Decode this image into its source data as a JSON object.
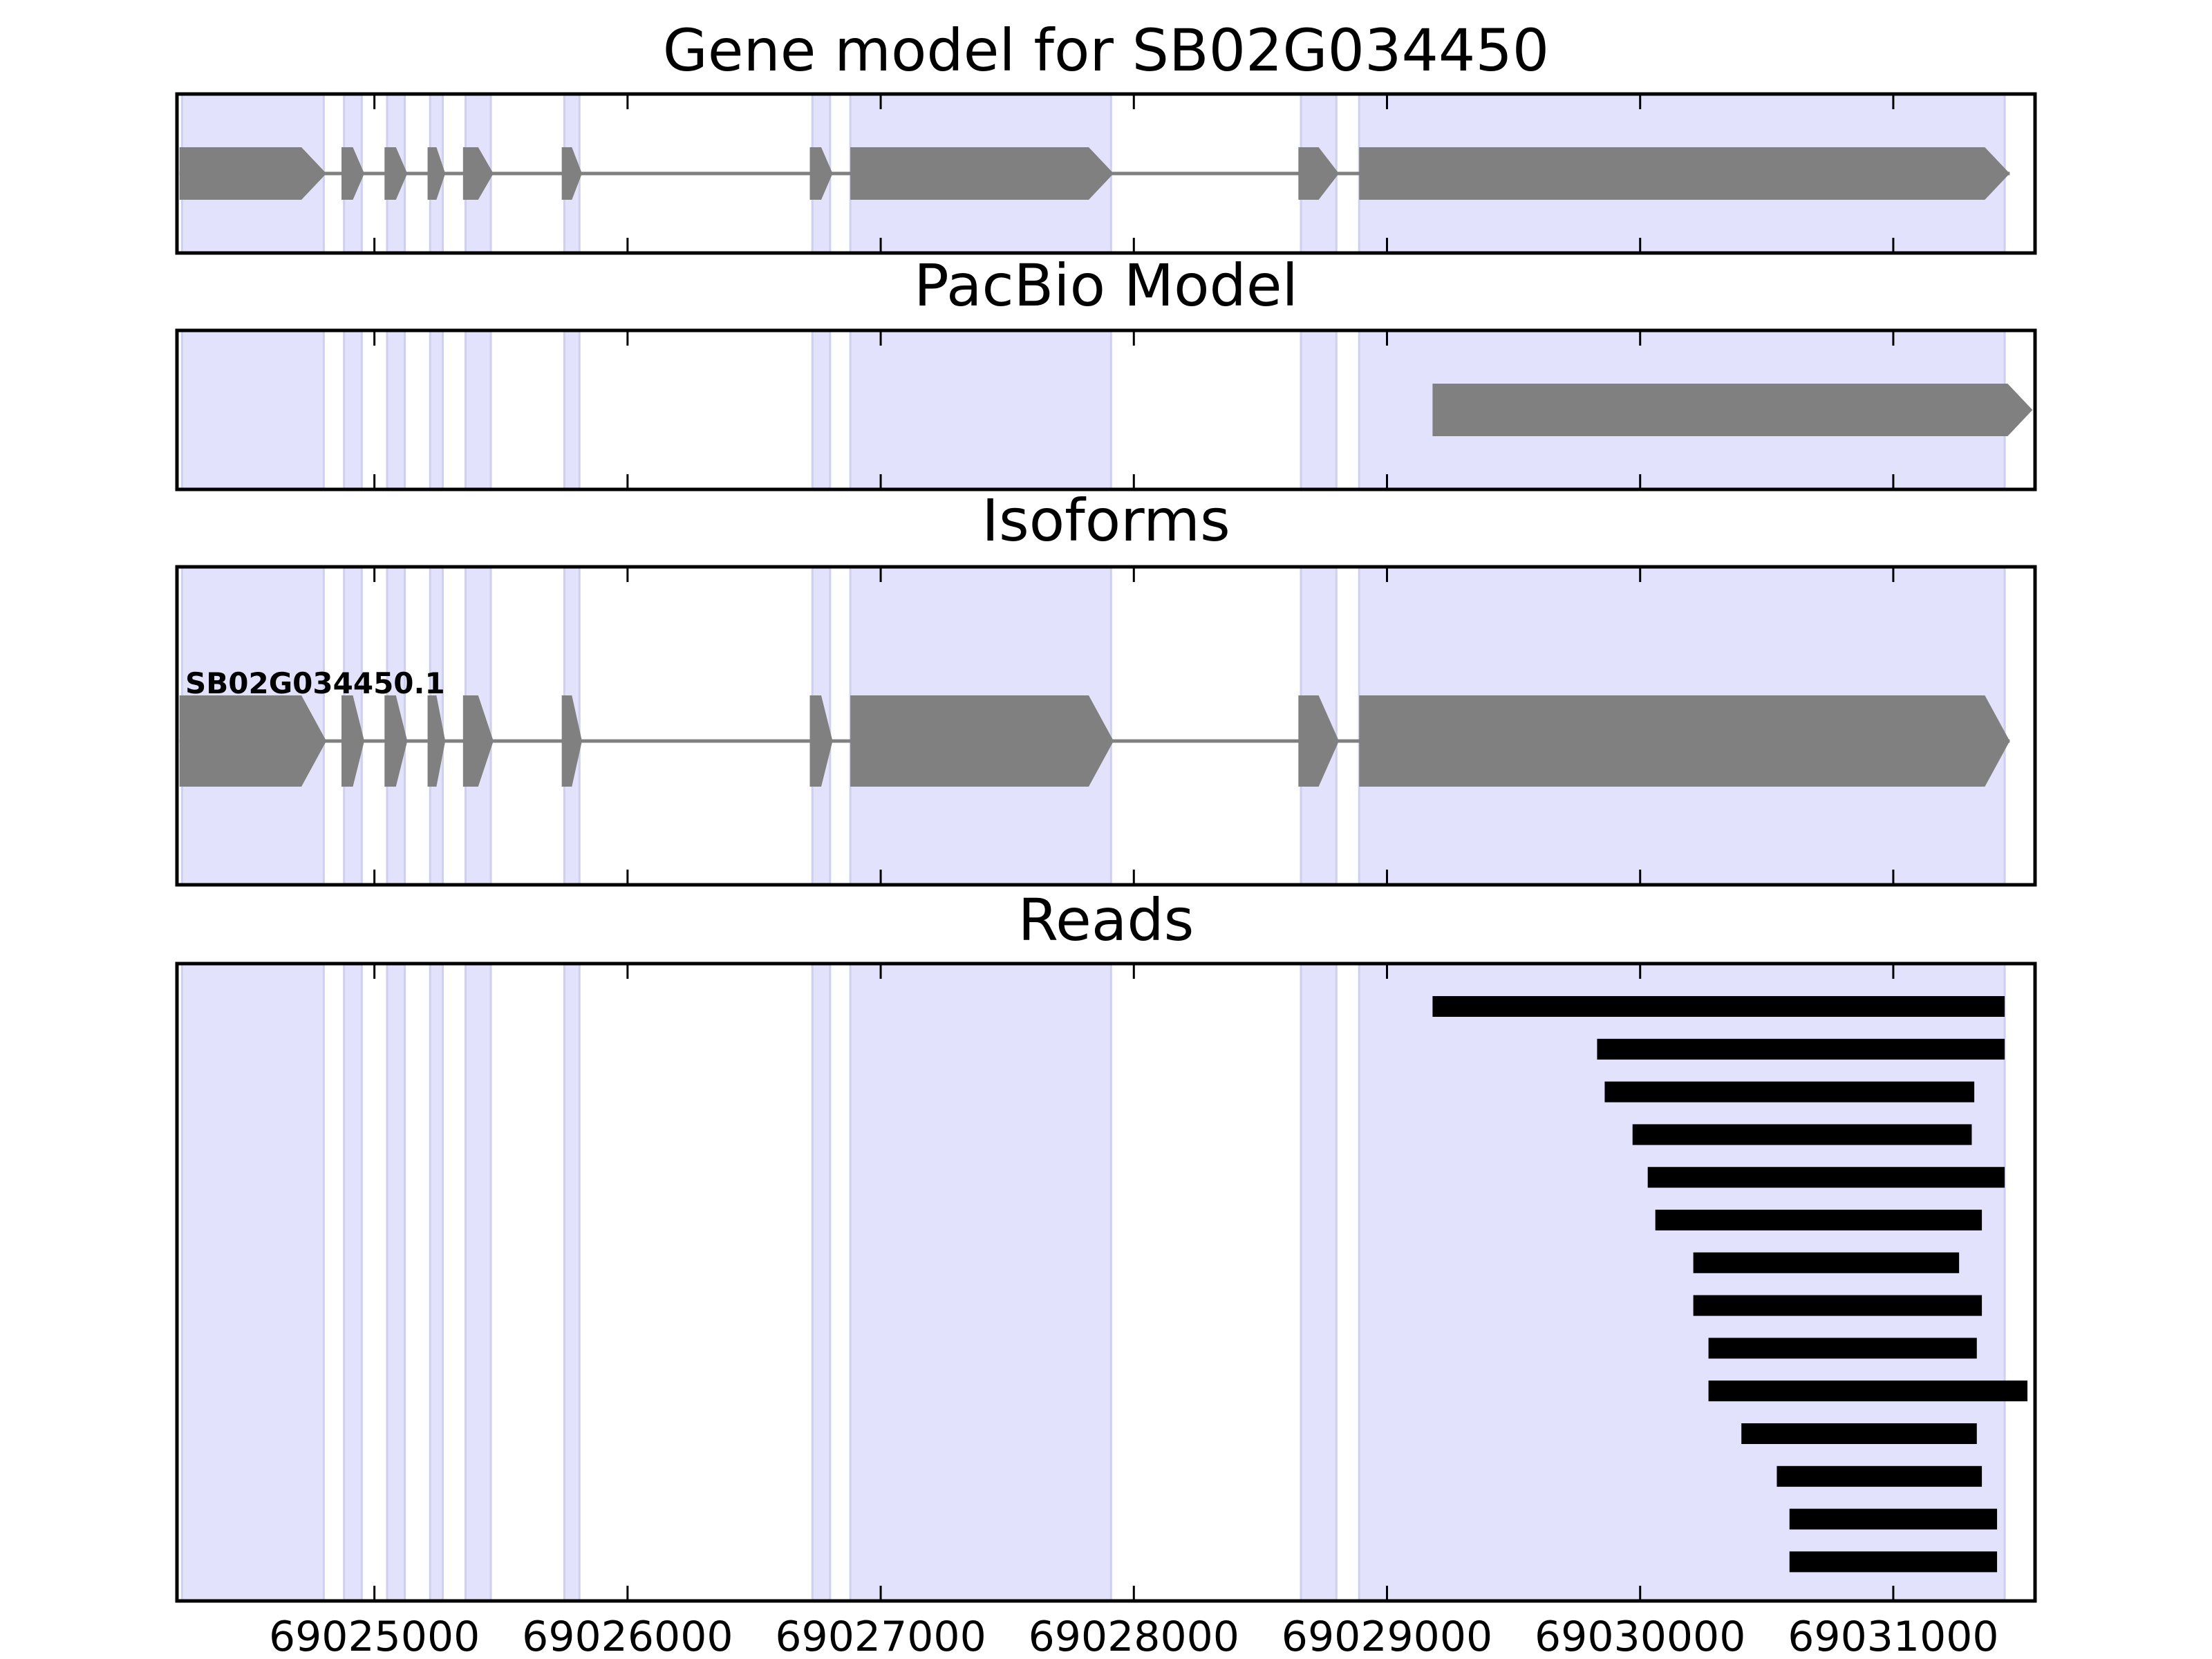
{
  "colors": {
    "exon_region": "#e2e2fc",
    "exon_region_edge": "#cfcff0",
    "feature": "#808080",
    "intron_line": "#808080",
    "read": "#000000",
    "frame": "#000000",
    "background": "#ffffff"
  },
  "chart_data": {
    "type": "gene-model-track-plot",
    "x_range": [
      69024220,
      69031560
    ],
    "x_ticks": [
      69025000,
      69026000,
      69027000,
      69028000,
      69029000,
      69030000,
      69031000
    ],
    "x_tick_labels": [
      "69025000",
      "69026000",
      "69027000",
      "69028000",
      "69029000",
      "69030000",
      "69031000"
    ],
    "exon_regions": [
      [
        69024240,
        69024800
      ],
      [
        69024880,
        69024950
      ],
      [
        69025050,
        69025120
      ],
      [
        69025220,
        69025270
      ],
      [
        69025360,
        69025460
      ],
      [
        69025750,
        69025810
      ],
      [
        69026730,
        69026800
      ],
      [
        69026880,
        69027910
      ],
      [
        69028660,
        69028800
      ],
      [
        69028890,
        69031440
      ]
    ],
    "panels": [
      {
        "title": "Gene model for SB02G034450",
        "strand": "+",
        "exons": [
          [
            69024230,
            69024810
          ],
          [
            69024870,
            69024960
          ],
          [
            69025040,
            69025130
          ],
          [
            69025210,
            69025280
          ],
          [
            69025350,
            69025470
          ],
          [
            69025740,
            69025820
          ],
          [
            69026720,
            69026810
          ],
          [
            69026880,
            69027920
          ],
          [
            69028650,
            69028810
          ],
          [
            69028890,
            69031460
          ]
        ]
      },
      {
        "title": "PacBio Model",
        "strand": "+",
        "exons": [
          [
            69029180,
            69031550
          ]
        ]
      },
      {
        "title": "Isoforms",
        "strand": "+",
        "isoform_label": "SB02G034450.1",
        "exons": [
          [
            69024230,
            69024810
          ],
          [
            69024870,
            69024960
          ],
          [
            69025040,
            69025130
          ],
          [
            69025210,
            69025280
          ],
          [
            69025350,
            69025470
          ],
          [
            69025740,
            69025820
          ],
          [
            69026720,
            69026810
          ],
          [
            69026880,
            69027920
          ],
          [
            69028650,
            69028810
          ],
          [
            69028890,
            69031460
          ]
        ]
      },
      {
        "title": "Reads",
        "reads": [
          [
            69029180,
            69031440
          ],
          [
            69029830,
            69031440
          ],
          [
            69029860,
            69031320
          ],
          [
            69029970,
            69031310
          ],
          [
            69030030,
            69031440
          ],
          [
            69030060,
            69031350
          ],
          [
            69030210,
            69031260
          ],
          [
            69030210,
            69031350
          ],
          [
            69030270,
            69031330
          ],
          [
            69030270,
            69031530
          ],
          [
            69030400,
            69031330
          ],
          [
            69030540,
            69031350
          ],
          [
            69030590,
            69031410
          ],
          [
            69030590,
            69031410
          ]
        ]
      }
    ]
  }
}
